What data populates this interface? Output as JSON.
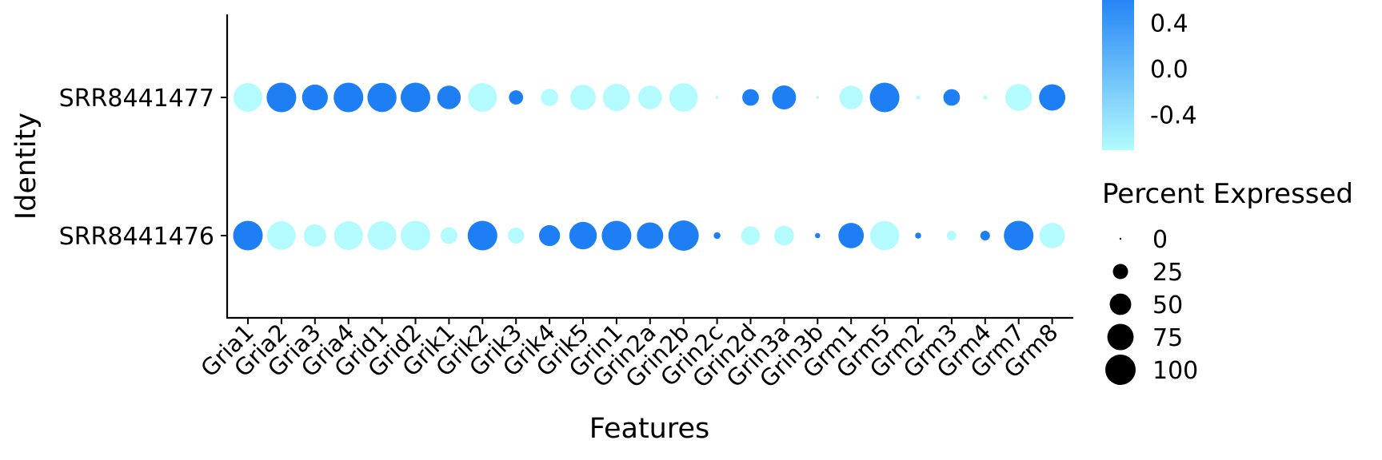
{
  "chart_data": {
    "type": "dot",
    "xlabel": "Features",
    "ylabel": "Identity",
    "features": [
      "Gria1",
      "Gria2",
      "Gria3",
      "Gria4",
      "Grid1",
      "Grid2",
      "Grik1",
      "Grik2",
      "Grik3",
      "Grik4",
      "Grik5",
      "Grin1",
      "Grin2a",
      "Grin2b",
      "Grin2c",
      "Grin2d",
      "Grin3a",
      "Grin3b",
      "Grm1",
      "Grm5",
      "Grm2",
      "Grm3",
      "Grm4",
      "Grm7",
      "Grm8"
    ],
    "identities": [
      "SRR8441477",
      "SRR8441476"
    ],
    "series": [
      {
        "identity": "SRR8441477",
        "percent_expressed": [
          90,
          95,
          72,
          95,
          92,
          95,
          60,
          90,
          22,
          32,
          70,
          80,
          60,
          88,
          1,
          30,
          62,
          1,
          60,
          95,
          2,
          30,
          2,
          78,
          75
        ],
        "avg_expression": [
          -0.7,
          0.7,
          0.7,
          0.7,
          0.7,
          0.7,
          0.7,
          -0.7,
          0.7,
          -0.7,
          -0.7,
          -0.7,
          -0.7,
          -0.7,
          -0.7,
          0.7,
          0.7,
          -0.7,
          -0.7,
          0.7,
          -0.7,
          0.7,
          -0.7,
          -0.7,
          0.7
        ]
      },
      {
        "identity": "SRR8441476",
        "percent_expressed": [
          95,
          88,
          55,
          90,
          90,
          95,
          30,
          95,
          28,
          48,
          82,
          95,
          75,
          100,
          5,
          38,
          42,
          3,
          70,
          92,
          4,
          10,
          10,
          95,
          70
        ],
        "avg_expression": [
          0.7,
          -0.7,
          -0.7,
          -0.7,
          -0.7,
          -0.7,
          -0.7,
          0.7,
          -0.7,
          0.7,
          0.7,
          0.7,
          0.7,
          0.7,
          0.7,
          -0.7,
          -0.7,
          0.7,
          0.7,
          -0.7,
          0.7,
          -0.7,
          0.7,
          0.7,
          -0.7
        ]
      }
    ],
    "color_scale": {
      "low": "#b3fbff",
      "high": "#1e7ff5",
      "domain": [
        -0.7,
        0.7
      ]
    },
    "color_legend": {
      "ticks": [
        "0.4",
        "0.0",
        "-0.4"
      ],
      "tick_values": [
        0.4,
        0.0,
        -0.4
      ]
    },
    "size_legend": {
      "title": "Percent Expressed",
      "labels": [
        "0",
        "25",
        "50",
        "75",
        "100"
      ],
      "values": [
        0,
        25,
        50,
        75,
        100
      ]
    },
    "grid": false
  }
}
